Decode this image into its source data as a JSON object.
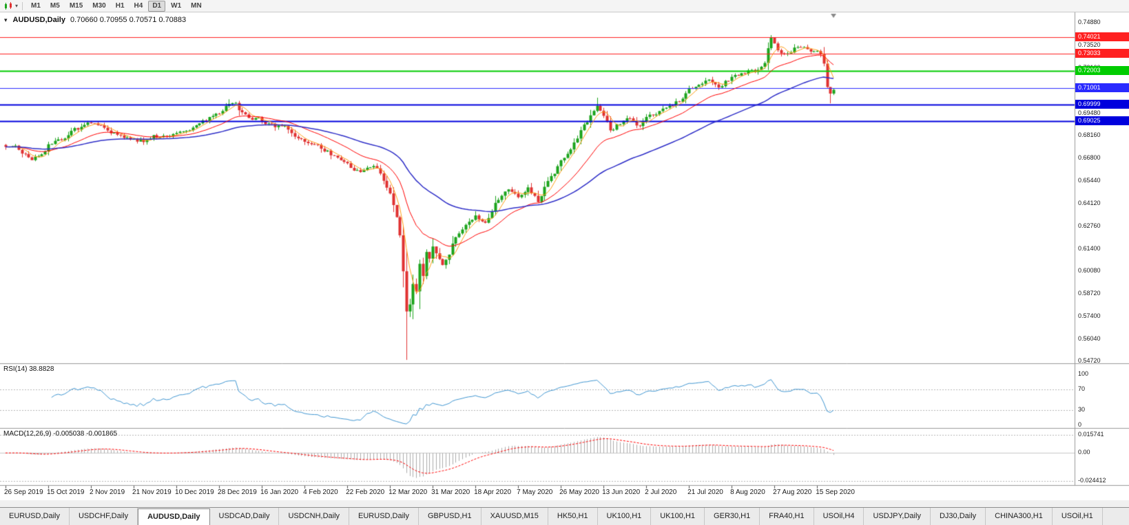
{
  "toolbar": {
    "timeframes": [
      "M1",
      "M5",
      "M15",
      "M30",
      "H1",
      "H4",
      "D1",
      "W1",
      "MN"
    ],
    "active_timeframe": "D1"
  },
  "icons": {
    "chart_mode_dropdown": "▾",
    "one_click_trading": "▾"
  },
  "price_pane": {
    "symbol_title": "AUDUSD,Daily",
    "ohlc_text": "0.70660 0.70955 0.70571 0.70883"
  },
  "rsi_pane": {
    "label": "RSI(14) 38.8828",
    "ticks": [
      "100",
      "70",
      "30",
      "0"
    ]
  },
  "macd_pane": {
    "label": "MACD(12,26,9) -0.005038 -0.001865",
    "ticks": [
      "0.015741",
      "0.00",
      "-0.024412"
    ]
  },
  "tabs": {
    "items": [
      "EURUSD,Daily",
      "USDCHF,Daily",
      "AUDUSD,Daily",
      "USDCAD,Daily",
      "USDCNH,Daily",
      "EURUSD,Daily",
      "GBPUSD,H1",
      "XAUUSD,M15",
      "HK50,H1",
      "UK100,H1",
      "UK100,H1",
      "GER30,H1",
      "FRA40,H1",
      "USOil,H4",
      "USDJPY,Daily",
      "DJ30,Daily",
      "CHINA300,H1",
      "USOil,H1"
    ],
    "active_index": 2
  },
  "chart_data": {
    "type": "candlestick",
    "symbol": "AUDUSD",
    "timeframe": "Daily",
    "last_candle": {
      "open": 0.7066,
      "high": 0.70955,
      "low": 0.70571,
      "close": 0.70883
    },
    "y_axis": {
      "min": 0.5472,
      "max": 0.7488,
      "ticks": [
        "0.74880",
        "0.73520",
        "0.72160",
        "0.69480",
        "0.68160",
        "0.66800",
        "0.65440",
        "0.64120",
        "0.62760",
        "0.61400",
        "0.60080",
        "0.58720",
        "0.57400",
        "0.56040",
        "0.54720"
      ]
    },
    "x_axis_labels": [
      "26 Sep 2019",
      "15 Oct 2019",
      "2 Nov 2019",
      "21 Nov 2019",
      "10 Dec 2019",
      "28 Dec 2019",
      "16 Jan 2020",
      "4 Feb 2020",
      "22 Feb 2020",
      "12 Mar 2020",
      "31 Mar 2020",
      "18 Apr 2020",
      "7 May 2020",
      "26 May 2020",
      "13 Jun 2020",
      "2 Jul 2020",
      "21 Jul 2020",
      "8 Aug 2020",
      "27 Aug 2020",
      "15 Sep 2020"
    ],
    "candles_per_label": 13,
    "horizontal_lines": [
      {
        "value": 0.74021,
        "label": "0.74021",
        "color": "#FF2020",
        "width": 1
      },
      {
        "value": 0.73033,
        "label": "0.73033",
        "color": "#FF2020",
        "width": 1
      },
      {
        "value": 0.72003,
        "label": "0.72003",
        "color": "#00CC00",
        "width": 2
      },
      {
        "value": 0.71001,
        "label": "0.71001",
        "color": "#2A2AFF",
        "width": 1
      },
      {
        "value": 0.69999,
        "label": "0.69999",
        "color": "#0000DD",
        "width": 2
      },
      {
        "value": 0.69025,
        "label": "0.69025",
        "color": "#0000DD",
        "width": 2
      }
    ],
    "candle_colors": {
      "up": "#1CA41C",
      "down": "#E03131"
    },
    "price_anchors": [
      [
        0,
        0.676
      ],
      [
        3,
        0.6738
      ],
      [
        5,
        0.6715
      ],
      [
        8,
        0.6672
      ],
      [
        11,
        0.671
      ],
      [
        13,
        0.6755
      ],
      [
        17,
        0.68
      ],
      [
        20,
        0.6845
      ],
      [
        23,
        0.687
      ],
      [
        26,
        0.689
      ],
      [
        29,
        0.6862
      ],
      [
        33,
        0.6838
      ],
      [
        36,
        0.6812
      ],
      [
        39,
        0.679
      ],
      [
        42,
        0.6782
      ],
      [
        45,
        0.6806
      ],
      [
        48,
        0.682
      ],
      [
        52,
        0.6843
      ],
      [
        55,
        0.6858
      ],
      [
        58,
        0.6882
      ],
      [
        61,
        0.6905
      ],
      [
        63,
        0.6925
      ],
      [
        65,
        0.6948
      ],
      [
        67,
        0.6988
      ],
      [
        68,
        0.7008
      ],
      [
        70,
        0.7
      ],
      [
        72,
        0.6952
      ],
      [
        74,
        0.6918
      ],
      [
        78,
        0.6898
      ],
      [
        81,
        0.688
      ],
      [
        84,
        0.6862
      ],
      [
        87,
        0.684
      ],
      [
        89,
        0.68
      ],
      [
        91,
        0.6772
      ],
      [
        94,
        0.6748
      ],
      [
        97,
        0.673
      ],
      [
        100,
        0.6692
      ],
      [
        102,
        0.6672
      ],
      [
        104,
        0.666
      ],
      [
        106,
        0.6612
      ],
      [
        108,
        0.6588
      ],
      [
        110,
        0.6622
      ],
      [
        112,
        0.6652
      ],
      [
        114,
        0.6583
      ],
      [
        116,
        0.652
      ],
      [
        117,
        0.648
      ],
      [
        118,
        0.6415
      ],
      [
        119,
        0.6335
      ],
      [
        120,
        0.6215
      ],
      [
        121,
        0.601
      ],
      [
        122,
        0.577
      ],
      [
        123,
        0.5825
      ],
      [
        124,
        0.5935
      ],
      [
        125,
        0.588
      ],
      [
        126,
        0.6052
      ],
      [
        127,
        0.5965
      ],
      [
        128,
        0.6128
      ],
      [
        129,
        0.609
      ],
      [
        130,
        0.6168
      ],
      [
        132,
        0.6098
      ],
      [
        133,
        0.6042
      ],
      [
        135,
        0.6122
      ],
      [
        136,
        0.6188
      ],
      [
        138,
        0.6242
      ],
      [
        140,
        0.6288
      ],
      [
        141,
        0.6318
      ],
      [
        143,
        0.6352
      ],
      [
        145,
        0.6322
      ],
      [
        146,
        0.6298
      ],
      [
        148,
        0.6362
      ],
      [
        150,
        0.6438
      ],
      [
        152,
        0.6468
      ],
      [
        153,
        0.6482
      ],
      [
        155,
        0.6455
      ],
      [
        156,
        0.6448
      ],
      [
        158,
        0.6488
      ],
      [
        159,
        0.6502
      ],
      [
        161,
        0.6462
      ],
      [
        162,
        0.6432
      ],
      [
        164,
        0.6505
      ],
      [
        165,
        0.6548
      ],
      [
        167,
        0.6602
      ],
      [
        169,
        0.6652
      ],
      [
        171,
        0.6698
      ],
      [
        172,
        0.6722
      ],
      [
        174,
        0.6788
      ],
      [
        175,
        0.6832
      ],
      [
        177,
        0.6892
      ],
      [
        179,
        0.6972
      ],
      [
        180,
        0.7002
      ],
      [
        181,
        0.6972
      ],
      [
        182,
        0.6932
      ],
      [
        184,
        0.6852
      ],
      [
        186,
        0.688
      ],
      [
        188,
        0.6905
      ],
      [
        189,
        0.6922
      ],
      [
        191,
        0.6892
      ],
      [
        192,
        0.6868
      ],
      [
        194,
        0.6898
      ],
      [
        195,
        0.6922
      ],
      [
        197,
        0.6938
      ],
      [
        199,
        0.6968
      ],
      [
        201,
        0.6992
      ],
      [
        203,
        0.6985
      ],
      [
        205,
        0.7022
      ],
      [
        207,
        0.7078
      ],
      [
        208,
        0.7102
      ],
      [
        210,
        0.7115
      ],
      [
        212,
        0.7138
      ],
      [
        214,
        0.7152
      ],
      [
        216,
        0.7128
      ],
      [
        217,
        0.7112
      ],
      [
        219,
        0.7142
      ],
      [
        221,
        0.7162
      ],
      [
        223,
        0.7178
      ],
      [
        225,
        0.7198
      ],
      [
        227,
        0.7225
      ],
      [
        229,
        0.7208
      ],
      [
        231,
        0.7265
      ],
      [
        232,
        0.7355
      ],
      [
        233,
        0.7398
      ],
      [
        234,
        0.7355
      ],
      [
        235,
        0.733
      ],
      [
        237,
        0.7312
      ],
      [
        239,
        0.733
      ],
      [
        241,
        0.7352
      ],
      [
        243,
        0.7338
      ],
      [
        245,
        0.732
      ],
      [
        247,
        0.7315
      ],
      [
        248,
        0.7295
      ],
      [
        249,
        0.7235
      ],
      [
        250,
        0.7105
      ],
      [
        251,
        0.7066
      ],
      [
        252,
        0.70883
      ]
    ],
    "wick_overrides": [
      {
        "day": 68,
        "high": 0.7032
      },
      {
        "day": 122,
        "low": 0.548
      },
      {
        "day": 180,
        "high": 0.70415
      },
      {
        "day": 233,
        "high": 0.7414
      },
      {
        "day": 251,
        "low": 0.7008
      }
    ],
    "indicators": {
      "moving_averages": [
        {
          "type": "sma",
          "period": 5,
          "color": "#FFA014",
          "width": 1
        },
        {
          "type": "ema",
          "period": 20,
          "color": "#FF0000",
          "width": 1
        },
        {
          "type": "ema",
          "period": 55,
          "color": "#2E2EC8",
          "width": 1.5
        }
      ],
      "rsi": {
        "period": 14,
        "current": 38.8828,
        "levels": [
          70,
          30
        ],
        "color": "#3F96D2"
      },
      "macd": {
        "fast": 12,
        "slow": 26,
        "signal_period": 9,
        "main_current": -0.005038,
        "signal_current": -0.001865,
        "scale_max": 0.015741,
        "scale_min": -0.024412,
        "histogram_color": "#ABABAB",
        "signal_color": "#FF0000"
      }
    }
  }
}
